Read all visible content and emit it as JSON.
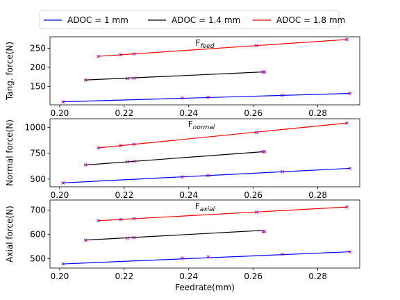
{
  "chart_data": {
    "type": "line",
    "xlabel": "Feedrate(mm)",
    "xlim": [
      0.197,
      0.293
    ],
    "x_ticks": [
      "0.20",
      "0.22",
      "0.24",
      "0.26",
      "0.28"
    ],
    "x_tick_values": [
      0.2,
      0.22,
      0.24,
      0.26,
      0.28
    ],
    "legend": {
      "placement": "top-center",
      "entries": [
        {
          "label": "ADOC = 1 mm",
          "color": "#0000ff"
        },
        {
          "label": "ADOC = 1.4 mm",
          "color": "#000000"
        },
        {
          "label": "ADOC = 1.8 mm",
          "color": "#ff0000"
        }
      ]
    },
    "marker_color": "#bf00bf",
    "panels": [
      {
        "title_main": "F",
        "title_sub": "feed",
        "ylabel": "Tang. force(N)",
        "ylim": [
          102,
          280
        ],
        "y_ticks": [
          "150",
          "200",
          "250"
        ],
        "y_tick_values": [
          150,
          200,
          250
        ],
        "series": [
          {
            "color": "#0000ff",
            "line": [
              [
                0.201,
                110
              ],
              [
                0.29,
                132
              ]
            ],
            "markers": [
              [
                0.201,
                110
              ],
              [
                0.238,
                120
              ],
              [
                0.246,
                122
              ],
              [
                0.269,
                127
              ],
              [
                0.29,
                132
              ]
            ]
          },
          {
            "color": "#000000",
            "line": [
              [
                0.208,
                167
              ],
              [
                0.263,
                188
              ]
            ],
            "markers": [
              [
                0.208,
                167
              ],
              [
                0.221,
                171
              ],
              [
                0.223,
                172
              ],
              [
                0.263,
                188
              ],
              [
                0.2635,
                188
              ]
            ]
          },
          {
            "color": "#ff0000",
            "line": [
              [
                0.212,
                229
              ],
              [
                0.289,
                273
              ]
            ],
            "markers": [
              [
                0.212,
                229
              ],
              [
                0.219,
                233
              ],
              [
                0.223,
                235
              ],
              [
                0.261,
                257
              ],
              [
                0.289,
                273
              ]
            ]
          }
        ]
      },
      {
        "title_main": "F",
        "title_sub": "normal",
        "ylabel": "Normal force(N)",
        "ylim": [
          425,
          1085
        ],
        "y_ticks": [
          "500",
          "750",
          "1000"
        ],
        "y_tick_values": [
          500,
          750,
          1000
        ],
        "series": [
          {
            "color": "#0000ff",
            "line": [
              [
                0.201,
                463
              ],
              [
                0.29,
                604
              ]
            ],
            "markers": [
              [
                0.201,
                463
              ],
              [
                0.238,
                521
              ],
              [
                0.246,
                535
              ],
              [
                0.269,
                571
              ],
              [
                0.29,
                604
              ]
            ]
          },
          {
            "color": "#000000",
            "line": [
              [
                0.208,
                637
              ],
              [
                0.263,
                765
              ]
            ],
            "markers": [
              [
                0.208,
                637
              ],
              [
                0.221,
                667
              ],
              [
                0.223,
                672
              ],
              [
                0.263,
                765
              ],
              [
                0.2635,
                766
              ]
            ]
          },
          {
            "color": "#ff0000",
            "line": [
              [
                0.212,
                803
              ],
              [
                0.289,
                1043
              ]
            ],
            "markers": [
              [
                0.212,
                803
              ],
              [
                0.219,
                825
              ],
              [
                0.223,
                838
              ],
              [
                0.261,
                951
              ],
              [
                0.289,
                1043
              ]
            ]
          }
        ]
      },
      {
        "title_main": "F",
        "title_sub": "axial",
        "ylabel": "Axial force(N)",
        "ylim": [
          462,
          742
        ],
        "y_ticks": [
          "500",
          "600",
          "700"
        ],
        "y_tick_values": [
          500,
          600,
          700
        ],
        "series": [
          {
            "color": "#0000ff",
            "line": [
              [
                0.201,
                479
              ],
              [
                0.29,
                529
              ]
            ],
            "markers": [
              [
                0.201,
                479
              ],
              [
                0.238,
                503
              ],
              [
                0.246,
                508
              ],
              [
                0.269,
                519
              ],
              [
                0.29,
                529
              ]
            ]
          },
          {
            "color": "#000000",
            "line": [
              [
                0.208,
                577
              ],
              [
                0.263,
                617
              ]
            ],
            "markers": [
              [
                0.208,
                577
              ],
              [
                0.221,
                585
              ],
              [
                0.223,
                587
              ],
              [
                0.263,
                612
              ],
              [
                0.2635,
                612
              ]
            ]
          },
          {
            "color": "#ff0000",
            "line": [
              [
                0.212,
                657
              ],
              [
                0.289,
                713
              ]
            ],
            "markers": [
              [
                0.212,
                657
              ],
              [
                0.219,
                662
              ],
              [
                0.223,
                666
              ],
              [
                0.261,
                692
              ],
              [
                0.289,
                713
              ]
            ]
          }
        ]
      }
    ]
  }
}
